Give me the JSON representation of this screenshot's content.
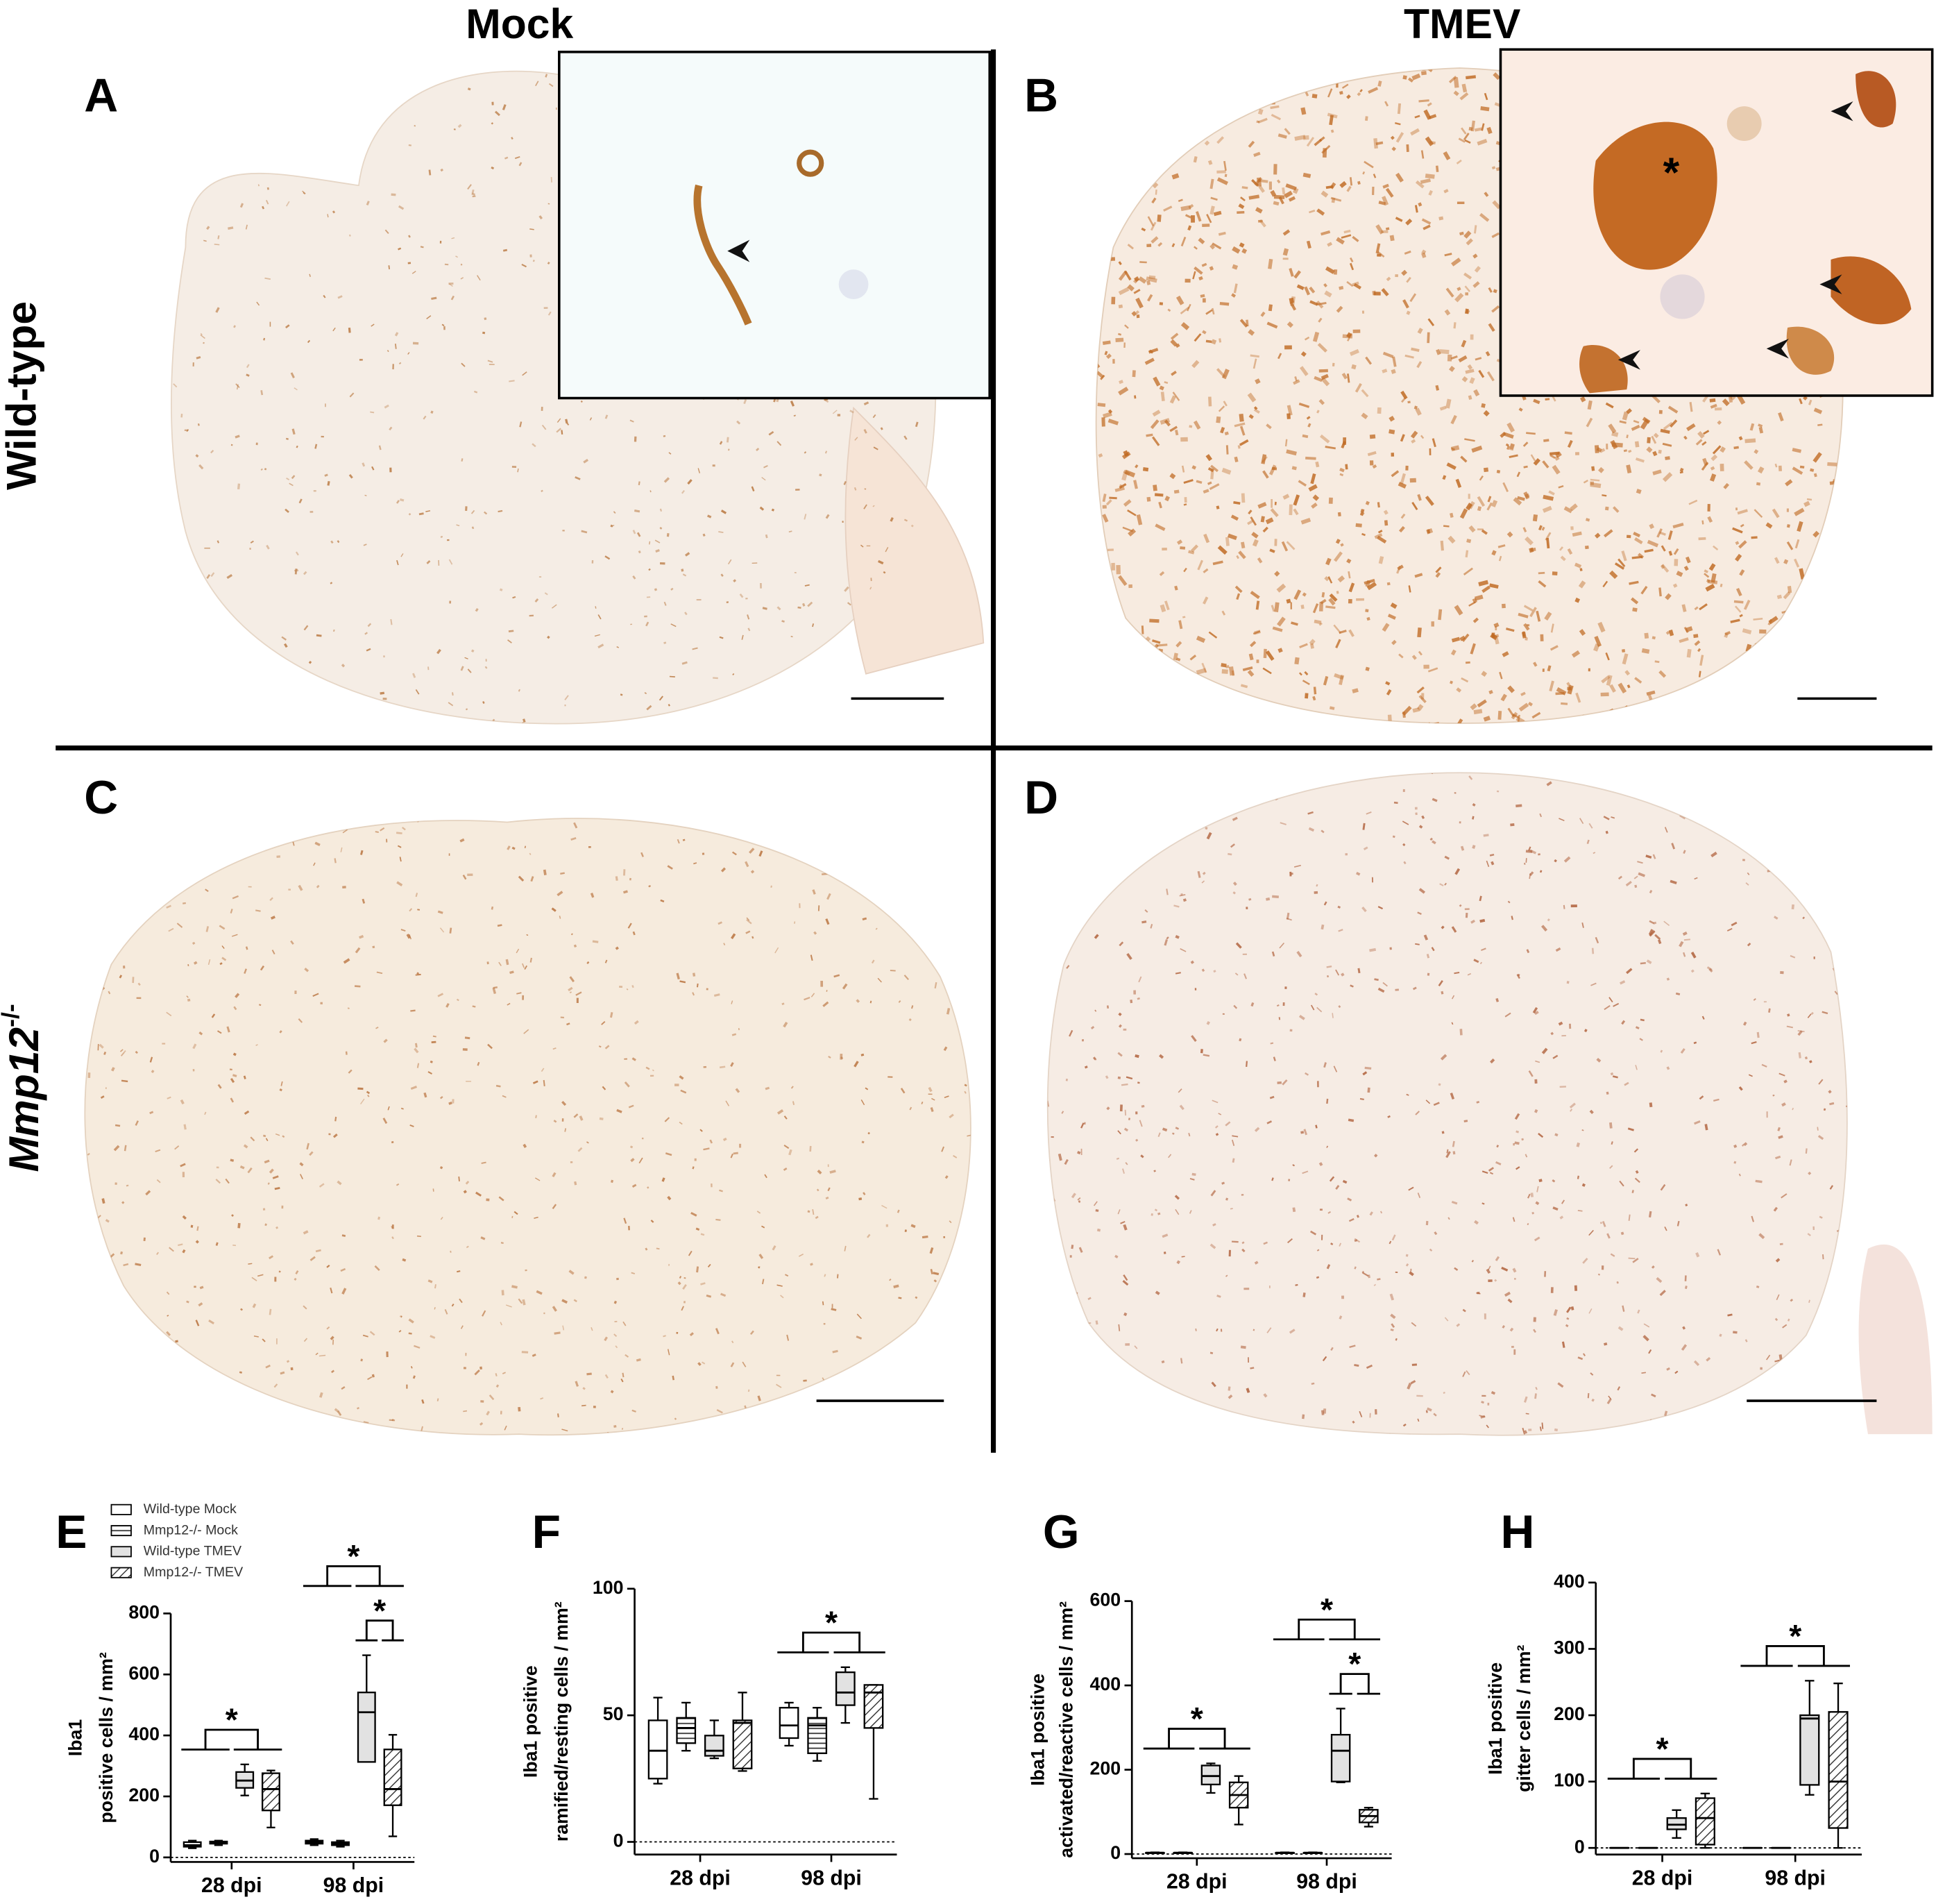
{
  "figure": {
    "columns": [
      "Mock",
      "TMEV"
    ],
    "rows": [
      {
        "text": "Wild-type"
      },
      {
        "gene": "Mmp12",
        "superscript": "-/-"
      }
    ],
    "panels": [
      "A",
      "B",
      "C",
      "D"
    ],
    "inset_asterisk": "*"
  },
  "chart_data": [
    {
      "type": "box",
      "panel": "E",
      "ylabel": [
        "Iba1",
        "positive cells / mm²"
      ],
      "categories": [
        "28 dpi",
        "98 dpi"
      ],
      "ylim": [
        -15,
        800
      ],
      "yticks": [
        0,
        200,
        400,
        600,
        800
      ],
      "zero_line": true,
      "legend": true,
      "series": [
        {
          "name": "Wild-type Mock",
          "color": "#ffffff",
          "pattern": "none",
          "values": [
            [
              30,
              35,
              40,
              50,
              55
            ],
            [
              40,
              45,
              50,
              55,
              60
            ]
          ]
        },
        {
          "name": "Mmp12-/- Mock",
          "color": "#ffffff",
          "pattern": "horizontal",
          "values": [
            [
              40,
              45,
              50,
              52,
              55
            ],
            [
              35,
              40,
              45,
              50,
              55
            ]
          ]
        },
        {
          "name": "Wild-type TMEV",
          "color": "#e2e2e2",
          "pattern": "none",
          "values": [
            [
              203,
              228,
              252,
              280,
              305
            ],
            [
              313,
              313,
              476,
              541,
              663
            ]
          ]
        },
        {
          "name": "Mmp12-/- TMEV",
          "color": "#ffffff",
          "pattern": "diagonal",
          "values": [
            [
              98,
              154,
              224,
              276,
              285
            ],
            [
              69,
              171,
              224,
              354,
              402
            ]
          ]
        }
      ],
      "significance": [
        {
          "text": "*",
          "category": 0,
          "groups": [
            [
              0,
              1
            ],
            [
              2,
              3
            ]
          ]
        },
        {
          "text": "*",
          "category": 1,
          "groups": [
            [
              2
            ],
            [
              3
            ]
          ]
        },
        {
          "text": "*",
          "category": 1,
          "groups": [
            [
              0,
              1
            ],
            [
              2,
              3
            ]
          ]
        }
      ]
    },
    {
      "type": "box",
      "panel": "F",
      "ylabel": [
        "Iba1 positive",
        "ramified/resting cells / mm²"
      ],
      "categories": [
        "28 dpi",
        "98 dpi"
      ],
      "ylim": [
        -5,
        100
      ],
      "yticks": [
        0,
        50,
        100
      ],
      "zero_line": true,
      "legend": false,
      "series": [
        {
          "name": "Wild-type Mock",
          "color": "#ffffff",
          "pattern": "none",
          "values": [
            [
              23,
              25,
              36,
              48,
              57
            ],
            [
              38,
              41,
              46,
              53,
              55
            ]
          ]
        },
        {
          "name": "Mmp12-/- Mock",
          "color": "#ffffff",
          "pattern": "horizontal",
          "values": [
            [
              36,
              39,
              45,
              49,
              55
            ],
            [
              32,
              35,
              46,
              49,
              53
            ]
          ]
        },
        {
          "name": "Wild-type TMEV",
          "color": "#e2e2e2",
          "pattern": "none",
          "values": [
            [
              33,
              34,
              36,
              42,
              48
            ],
            [
              47,
              54,
              59,
              67,
              69
            ]
          ]
        },
        {
          "name": "Mmp12-/- TMEV",
          "color": "#ffffff",
          "pattern": "diagonal",
          "values": [
            [
              28,
              29,
              47,
              48,
              59
            ],
            [
              17,
              45,
              59,
              62,
              62
            ]
          ]
        }
      ],
      "significance": [
        {
          "text": "*",
          "category": 1,
          "groups": [
            [
              0,
              1
            ],
            [
              2,
              3
            ]
          ]
        }
      ]
    },
    {
      "type": "box",
      "panel": "G",
      "ylabel": [
        "Iba1 positive",
        "activated/reactive cells / mm²"
      ],
      "categories": [
        "28 dpi",
        "98 dpi"
      ],
      "ylim": [
        -10,
        600
      ],
      "yticks": [
        0,
        200,
        400,
        600
      ],
      "zero_line": true,
      "legend": false,
      "series": [
        {
          "name": "Wild-type Mock",
          "color": "#ffffff",
          "pattern": "none",
          "values": [
            [
              2,
              2,
              3,
              3,
              4
            ],
            [
              2,
              2,
              3,
              3,
              4
            ]
          ]
        },
        {
          "name": "Mmp12-/- Mock",
          "color": "#ffffff",
          "pattern": "horizontal",
          "values": [
            [
              2,
              2,
              3,
              3,
              4
            ],
            [
              2,
              2,
              3,
              3,
              4
            ]
          ]
        },
        {
          "name": "Wild-type TMEV",
          "color": "#e2e2e2",
          "pattern": "none",
          "values": [
            [
              145,
              165,
              185,
              210,
              215
            ],
            [
              170,
              172,
              245,
              283,
              345
            ]
          ]
        },
        {
          "name": "Mmp12-/- TMEV",
          "color": "#ffffff",
          "pattern": "diagonal",
          "values": [
            [
              70,
              110,
              140,
              170,
              185
            ],
            [
              65,
              75,
              90,
              105,
              110
            ]
          ]
        }
      ],
      "significance": [
        {
          "text": "*",
          "category": 0,
          "groups": [
            [
              0,
              1
            ],
            [
              2,
              3
            ]
          ]
        },
        {
          "text": "*",
          "category": 1,
          "groups": [
            [
              2
            ],
            [
              3
            ]
          ]
        },
        {
          "text": "*",
          "category": 1,
          "groups": [
            [
              0,
              1
            ],
            [
              2,
              3
            ]
          ]
        }
      ]
    },
    {
      "type": "box",
      "panel": "H",
      "ylabel": [
        "Iba1 positive",
        "gitter cells / mm²"
      ],
      "categories": [
        "28 dpi",
        "98 dpi"
      ],
      "ylim": [
        -10,
        400
      ],
      "yticks": [
        0,
        100,
        200,
        300,
        400
      ],
      "zero_line": true,
      "legend": false,
      "series": [
        {
          "name": "Wild-type Mock",
          "color": "#ffffff",
          "pattern": "none",
          "values": [
            [
              0,
              0,
              0,
              0,
              0
            ],
            [
              0,
              0,
              0,
              0,
              0
            ]
          ]
        },
        {
          "name": "Mmp12-/- Mock",
          "color": "#ffffff",
          "pattern": "horizontal",
          "values": [
            [
              0,
              0,
              0,
              0,
              0
            ],
            [
              0,
              0,
              0,
              0,
              0
            ]
          ]
        },
        {
          "name": "Wild-type TMEV",
          "color": "#e2e2e2",
          "pattern": "none",
          "values": [
            [
              15,
              28,
              35,
              45,
              57
            ],
            [
              80,
              95,
              195,
              200,
              252
            ]
          ]
        },
        {
          "name": "Mmp12-/- TMEV",
          "color": "#ffffff",
          "pattern": "diagonal",
          "values": [
            [
              0,
              5,
              45,
              75,
              82
            ],
            [
              0,
              30,
              100,
              205,
              248
            ]
          ]
        }
      ],
      "significance": [
        {
          "text": "*",
          "category": 0,
          "groups": [
            [
              0,
              1
            ],
            [
              2,
              3
            ]
          ]
        },
        {
          "text": "*",
          "category": 1,
          "groups": [
            [
              0,
              1
            ],
            [
              2,
              3
            ]
          ]
        }
      ]
    }
  ]
}
